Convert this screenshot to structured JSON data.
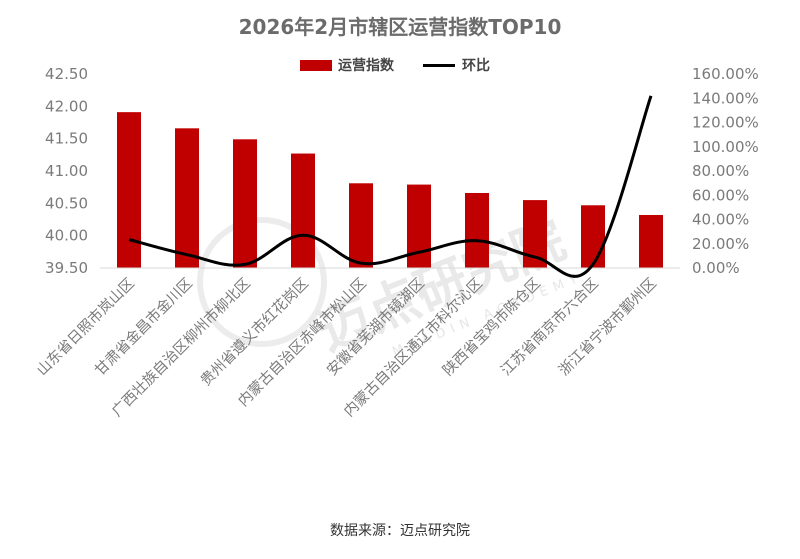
{
  "chart_data": {
    "type": "bar+line",
    "title": "2026年2月市辖区运营指数TOP10",
    "categories": [
      "山东省日照市岚山区",
      "甘肃省金昌市金川区",
      "广西壮族自治区柳州市柳北区",
      "贵州省遵义市红花岗区",
      "内蒙古自治区赤峰市松山区",
      "安徽省芜湖市镜湖区",
      "内蒙古自治区通辽市科尔沁区",
      "陕西省宝鸡市陈仓区",
      "江苏省南京市六合区",
      "浙江省宁波市鄞州区"
    ],
    "series": [
      {
        "name": "运营指数",
        "type": "bar",
        "axis": "left",
        "color": "#c00000",
        "values": [
          41.91,
          41.66,
          41.49,
          41.27,
          40.81,
          40.79,
          40.66,
          40.55,
          40.47,
          40.32
        ]
      },
      {
        "name": "环比",
        "type": "line",
        "axis": "right",
        "color": "#000000",
        "values": [
          0.235,
          0.11,
          0.03,
          0.27,
          0.04,
          0.13,
          0.225,
          0.09,
          0.03,
          1.42
        ]
      }
    ],
    "left_axis": {
      "ylim": [
        39.5,
        42.5
      ],
      "ticks": [
        "39.50",
        "40.00",
        "40.50",
        "41.00",
        "41.50",
        "42.00",
        "42.50"
      ]
    },
    "right_axis": {
      "ylim": [
        0,
        1.6
      ],
      "ticks": [
        "0.00%",
        "20.00%",
        "40.00%",
        "60.00%",
        "80.00%",
        "100.00%",
        "120.00%",
        "140.00%",
        "160.00%"
      ]
    },
    "legend_position": "top-center",
    "grid": false
  },
  "watermark": {
    "text": "迈点研究院",
    "subtext": "MEADIN ACADEMY"
  },
  "source": "数据来源：迈点研究院"
}
